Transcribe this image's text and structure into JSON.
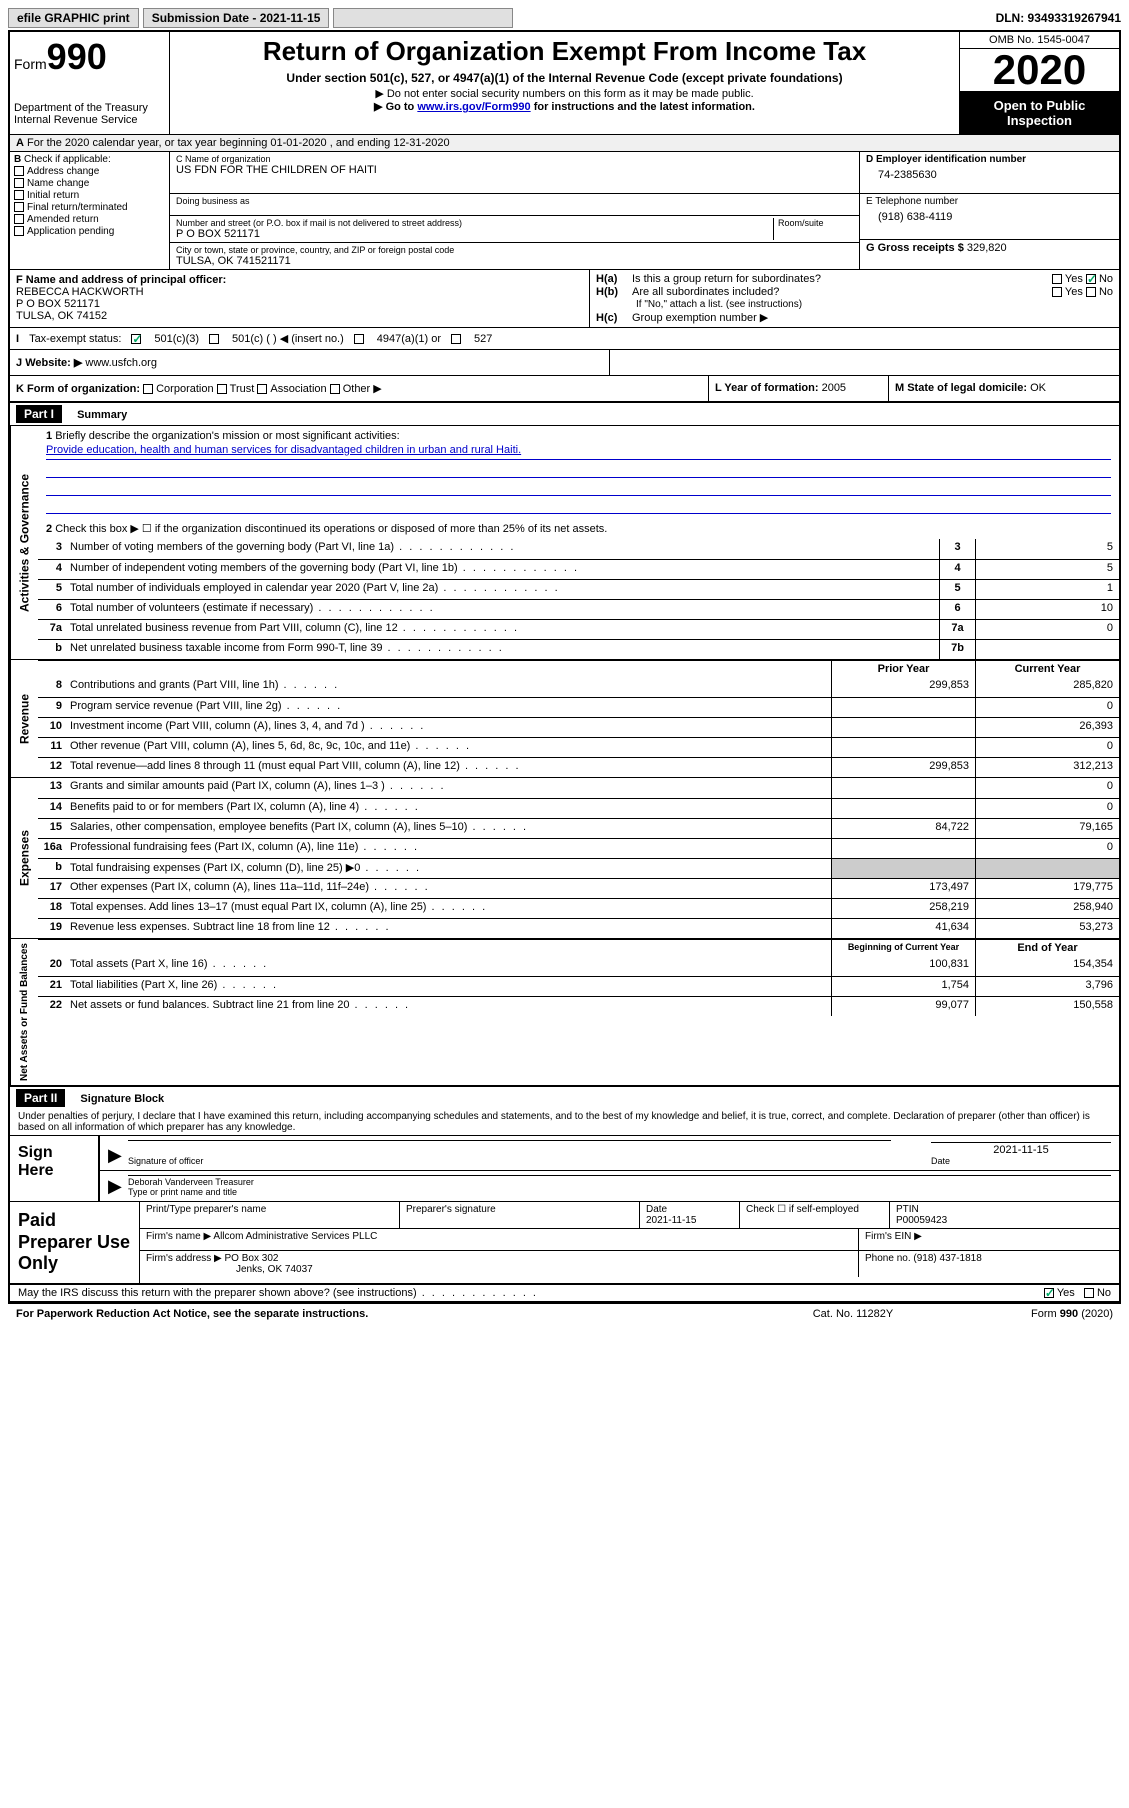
{
  "topbar": {
    "efile": "efile GRAPHIC print",
    "submission_label": "Submission Date - 2021-11-15",
    "dln": "DLN: 93493319267941"
  },
  "header": {
    "form_prefix": "Form",
    "form_number": "990",
    "dept": "Department of the Treasury\nInternal Revenue Service",
    "title": "Return of Organization Exempt From Income Tax",
    "subtitle": "Under section 501(c), 527, or 4947(a)(1) of the Internal Revenue Code (except private foundations)",
    "note1": "▶ Do not enter social security numbers on this form as it may be made public.",
    "note2_pre": "▶ Go to ",
    "note2_link": "www.irs.gov/Form990",
    "note2_post": " for instructions and the latest information.",
    "omb": "OMB No. 1545-0047",
    "year": "2020",
    "open_public": "Open to Public Inspection"
  },
  "row_a": "For the 2020 calendar year, or tax year beginning 01-01-2020    , and ending 12-31-2020",
  "check_b": {
    "label": "Check if applicable:",
    "opts": [
      "Address change",
      "Name change",
      "Initial return",
      "Final return/terminated",
      "Amended return",
      "Application pending"
    ]
  },
  "org": {
    "name_label": "C Name of organization",
    "name": "US FDN FOR THE CHILDREN OF HAITI",
    "dba_label": "Doing business as",
    "dba": "",
    "street_label": "Number and street (or P.O. box if mail is not delivered to street address)",
    "room_label": "Room/suite",
    "street": "P O BOX 521171",
    "city_label": "City or town, state or province, country, and ZIP or foreign postal code",
    "city": "TULSA, OK  741521171"
  },
  "ein": {
    "label": "D Employer identification number",
    "value": "74-2385630"
  },
  "tel": {
    "label": "E Telephone number",
    "value": "(918) 638-4119"
  },
  "gross": {
    "label": "G Gross receipts $",
    "value": "329,820"
  },
  "officer": {
    "label": "F  Name and address of principal officer:",
    "name": "REBECCA HACKWORTH",
    "line1": "P O BOX 521171",
    "line2": "TULSA, OK  74152"
  },
  "h": {
    "a_label": "H(a)",
    "a_text": "Is this a group return for subordinates?",
    "a_yes": "Yes",
    "a_no": "No",
    "b_label": "H(b)",
    "b_text": "Are all subordinates included?",
    "b_note": "If \"No,\" attach a list. (see instructions)",
    "c_label": "H(c)",
    "c_text": "Group exemption number ▶"
  },
  "tax_exempt": {
    "label": "Tax-exempt status:",
    "opt1": "501(c)(3)",
    "opt2": "501(c) (   ) ◀ (insert no.)",
    "opt3": "4947(a)(1) or",
    "opt4": "527"
  },
  "website": {
    "label": "Website: ▶",
    "value": "www.usfch.org"
  },
  "k": {
    "label": "K Form of organization:",
    "opts": [
      "Corporation",
      "Trust",
      "Association",
      "Other ▶"
    ]
  },
  "l": {
    "label": "L Year of formation:",
    "value": "2005"
  },
  "m": {
    "label": "M State of legal domicile:",
    "value": "OK"
  },
  "part1": {
    "header": "Part I",
    "title": "Summary",
    "q1_label": "1",
    "q1_text": "Briefly describe the organization's mission or most significant activities:",
    "q1_answer": "Provide education, health and human services for disadvantaged children in urban and rural Haiti.",
    "q2_label": "2",
    "q2_text": "Check this box ▶ ☐  if the organization discontinued its operations or disposed of more than 25% of its net assets."
  },
  "gov_lines": [
    {
      "num": "3",
      "desc": "Number of voting members of the governing body (Part VI, line 1a)",
      "box": "3",
      "v": "5"
    },
    {
      "num": "4",
      "desc": "Number of independent voting members of the governing body (Part VI, line 1b)",
      "box": "4",
      "v": "5"
    },
    {
      "num": "5",
      "desc": "Total number of individuals employed in calendar year 2020 (Part V, line 2a)",
      "box": "5",
      "v": "1"
    },
    {
      "num": "6",
      "desc": "Total number of volunteers (estimate if necessary)",
      "box": "6",
      "v": "10"
    },
    {
      "num": "7a",
      "desc": "Total unrelated business revenue from Part VIII, column (C), line 12",
      "box": "7a",
      "v": "0"
    },
    {
      "num": "b",
      "desc": "Net unrelated business taxable income from Form 990-T, line 39",
      "box": "7b",
      "v": ""
    }
  ],
  "col_headers": {
    "prior": "Prior Year",
    "current": "Current Year",
    "begin": "Beginning of Current Year",
    "end": "End of Year"
  },
  "revenue_lines": [
    {
      "num": "8",
      "desc": "Contributions and grants (Part VIII, line 1h)",
      "p": "299,853",
      "c": "285,820"
    },
    {
      "num": "9",
      "desc": "Program service revenue (Part VIII, line 2g)",
      "p": "",
      "c": "0"
    },
    {
      "num": "10",
      "desc": "Investment income (Part VIII, column (A), lines 3, 4, and 7d )",
      "p": "",
      "c": "26,393"
    },
    {
      "num": "11",
      "desc": "Other revenue (Part VIII, column (A), lines 5, 6d, 8c, 9c, 10c, and 11e)",
      "p": "",
      "c": "0"
    },
    {
      "num": "12",
      "desc": "Total revenue—add lines 8 through 11 (must equal Part VIII, column (A), line 12)",
      "p": "299,853",
      "c": "312,213"
    }
  ],
  "expense_lines": [
    {
      "num": "13",
      "desc": "Grants and similar amounts paid (Part IX, column (A), lines 1–3 )",
      "p": "",
      "c": "0"
    },
    {
      "num": "14",
      "desc": "Benefits paid to or for members (Part IX, column (A), line 4)",
      "p": "",
      "c": "0"
    },
    {
      "num": "15",
      "desc": "Salaries, other compensation, employee benefits (Part IX, column (A), lines 5–10)",
      "p": "84,722",
      "c": "79,165"
    },
    {
      "num": "16a",
      "desc": "Professional fundraising fees (Part IX, column (A), line 11e)",
      "p": "",
      "c": "0"
    },
    {
      "num": "b",
      "desc": "Total fundraising expenses (Part IX, column (D), line 25) ▶0",
      "p": "SHADE",
      "c": "SHADE"
    },
    {
      "num": "17",
      "desc": "Other expenses (Part IX, column (A), lines 11a–11d, 11f–24e)",
      "p": "173,497",
      "c": "179,775"
    },
    {
      "num": "18",
      "desc": "Total expenses. Add lines 13–17 (must equal Part IX, column (A), line 25)",
      "p": "258,219",
      "c": "258,940"
    },
    {
      "num": "19",
      "desc": "Revenue less expenses. Subtract line 18 from line 12",
      "p": "41,634",
      "c": "53,273"
    }
  ],
  "net_lines": [
    {
      "num": "20",
      "desc": "Total assets (Part X, line 16)",
      "p": "100,831",
      "c": "154,354"
    },
    {
      "num": "21",
      "desc": "Total liabilities (Part X, line 26)",
      "p": "1,754",
      "c": "3,796"
    },
    {
      "num": "22",
      "desc": "Net assets or fund balances. Subtract line 21 from line 20",
      "p": "99,077",
      "c": "150,558"
    }
  ],
  "vert": {
    "gov": "Activities & Governance",
    "rev": "Revenue",
    "exp": "Expenses",
    "net": "Net Assets or Fund Balances"
  },
  "part2": {
    "header": "Part II",
    "title": "Signature Block",
    "penalty": "Under penalties of perjury, I declare that I have examined this return, including accompanying schedules and statements, and to the best of my knowledge and belief, it is true, correct, and complete. Declaration of preparer (other than officer) is based on all information of which preparer has any knowledge."
  },
  "sign": {
    "label": "Sign Here",
    "sig_label": "Signature of officer",
    "date_label": "Date",
    "date_value": "2021-11-15",
    "name": "Deborah Vanderveen  Treasurer",
    "name_label": "Type or print name and title"
  },
  "prep": {
    "label": "Paid Preparer Use Only",
    "h1": "Print/Type preparer's name",
    "h2": "Preparer's signature",
    "h3": "Date",
    "h3v": "2021-11-15",
    "h4": "Check ☐ if self-employed",
    "h5": "PTIN",
    "h5v": "P00059423",
    "firm_label": "Firm's name    ▶",
    "firm": "Allcom Administrative Services PLLC",
    "ein_label": "Firm's EIN ▶",
    "addr_label": "Firm's address ▶",
    "addr1": "PO Box 302",
    "addr2": "Jenks, OK  74037",
    "phone_label": "Phone no.",
    "phone": "(918) 437-1818"
  },
  "discuss": {
    "text": "May the IRS discuss this return with the preparer shown above? (see instructions)",
    "yes": "Yes",
    "no": "No"
  },
  "footer": {
    "left": "For Paperwork Reduction Act Notice, see the separate instructions.",
    "mid": "Cat. No. 11282Y",
    "right": "Form 990 (2020)"
  },
  "colors": {
    "link": "#0000cc",
    "header_bg": "#000000",
    "shade": "#cccccc"
  }
}
